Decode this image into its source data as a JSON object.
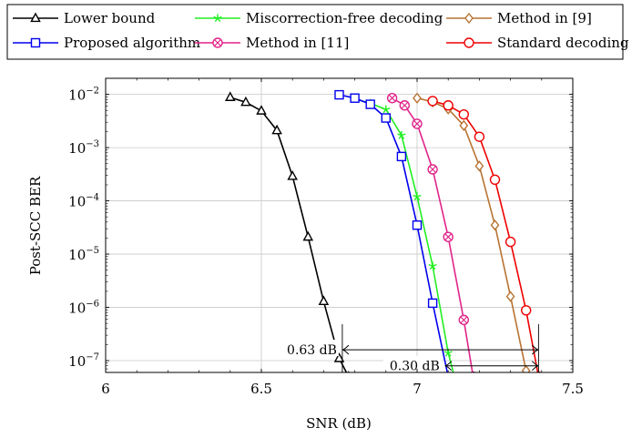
{
  "chart_data": {
    "type": "line",
    "xlabel": "SNR (dB)",
    "ylabel": "Post-SCC BER",
    "xlim": [
      6,
      7.5
    ],
    "ylim": [
      6e-08,
      0.02
    ],
    "yscale": "log",
    "grid": true,
    "legend_position": "top",
    "x_ticks": [
      {
        "value": 6,
        "label": "6"
      },
      {
        "value": 6.5,
        "label": "6.5"
      },
      {
        "value": 7,
        "label": "7"
      },
      {
        "value": 7.5,
        "label": "7.5"
      }
    ],
    "y_ticks": [
      {
        "value": 0.01,
        "base": "10",
        "exp": "−2"
      },
      {
        "value": 0.001,
        "base": "10",
        "exp": "−3"
      },
      {
        "value": 0.0001,
        "base": "10",
        "exp": "−4"
      },
      {
        "value": 1e-05,
        "base": "10",
        "exp": "−5"
      },
      {
        "value": 1e-06,
        "base": "10",
        "exp": "−6"
      },
      {
        "value": 1e-07,
        "base": "10",
        "exp": "−7"
      }
    ],
    "series": [
      {
        "name": "Lower bound",
        "color": "#000000",
        "marker": "triangle",
        "x": [
          6.4,
          6.45,
          6.5,
          6.55,
          6.6,
          6.65,
          6.7,
          6.75,
          6.78
        ],
        "y": [
          0.0088,
          0.0071,
          0.0049,
          0.0021,
          0.00029,
          2.1e-05,
          1.3e-06,
          1.1e-07,
          5e-08
        ]
      },
      {
        "name": "Miscorrection-free decoding",
        "color": "#22ee22",
        "marker": "star",
        "x": [
          6.8,
          6.85,
          6.9,
          6.95,
          7.0,
          7.05,
          7.1,
          7.12
        ],
        "y": [
          0.0082,
          0.0068,
          0.0052,
          0.0017,
          0.00012,
          6e-06,
          1.4e-07,
          5e-08
        ]
      },
      {
        "name": "Method in [9]",
        "color": "#b87333",
        "marker": "diamond",
        "x": [
          7.0,
          7.05,
          7.1,
          7.15,
          7.2,
          7.25,
          7.3,
          7.35,
          7.36
        ],
        "y": [
          0.0085,
          0.0072,
          0.0053,
          0.0026,
          0.00045,
          3.5e-05,
          1.6e-06,
          6.5e-08,
          5e-08
        ]
      },
      {
        "name": "Proposed algorithm",
        "color": "#0000ee",
        "marker": "square",
        "x": [
          6.75,
          6.8,
          6.85,
          6.9,
          6.95,
          7.0,
          7.05,
          7.1
        ],
        "y": [
          0.0098,
          0.0085,
          0.0065,
          0.0036,
          0.00068,
          3.5e-05,
          1.2e-06,
          5e-08
        ]
      },
      {
        "name": "Method in [11]",
        "color": "#e0248a",
        "marker": "otimes",
        "x": [
          6.92,
          6.96,
          7.0,
          7.05,
          7.1,
          7.15,
          7.18
        ],
        "y": [
          0.0085,
          0.0062,
          0.0028,
          0.00039,
          2.1e-05,
          5.8e-07,
          5e-08
        ]
      },
      {
        "name": "Standard decoding",
        "color": "#ee0000",
        "marker": "circle",
        "x": [
          7.05,
          7.1,
          7.15,
          7.2,
          7.25,
          7.3,
          7.35,
          7.39
        ],
        "y": [
          0.0075,
          0.0062,
          0.0042,
          0.0016,
          0.00025,
          1.7e-05,
          8.8e-07,
          5e-08
        ]
      }
    ],
    "annotations": [
      {
        "text": "0.63 dB",
        "x_from": 6.76,
        "x_to": 7.39,
        "y": 1.6e-07,
        "label_side": "left"
      },
      {
        "text": "0.30 dB",
        "x_from": 7.09,
        "x_to": 7.39,
        "y": 8e-08,
        "label_side": "left"
      }
    ]
  }
}
